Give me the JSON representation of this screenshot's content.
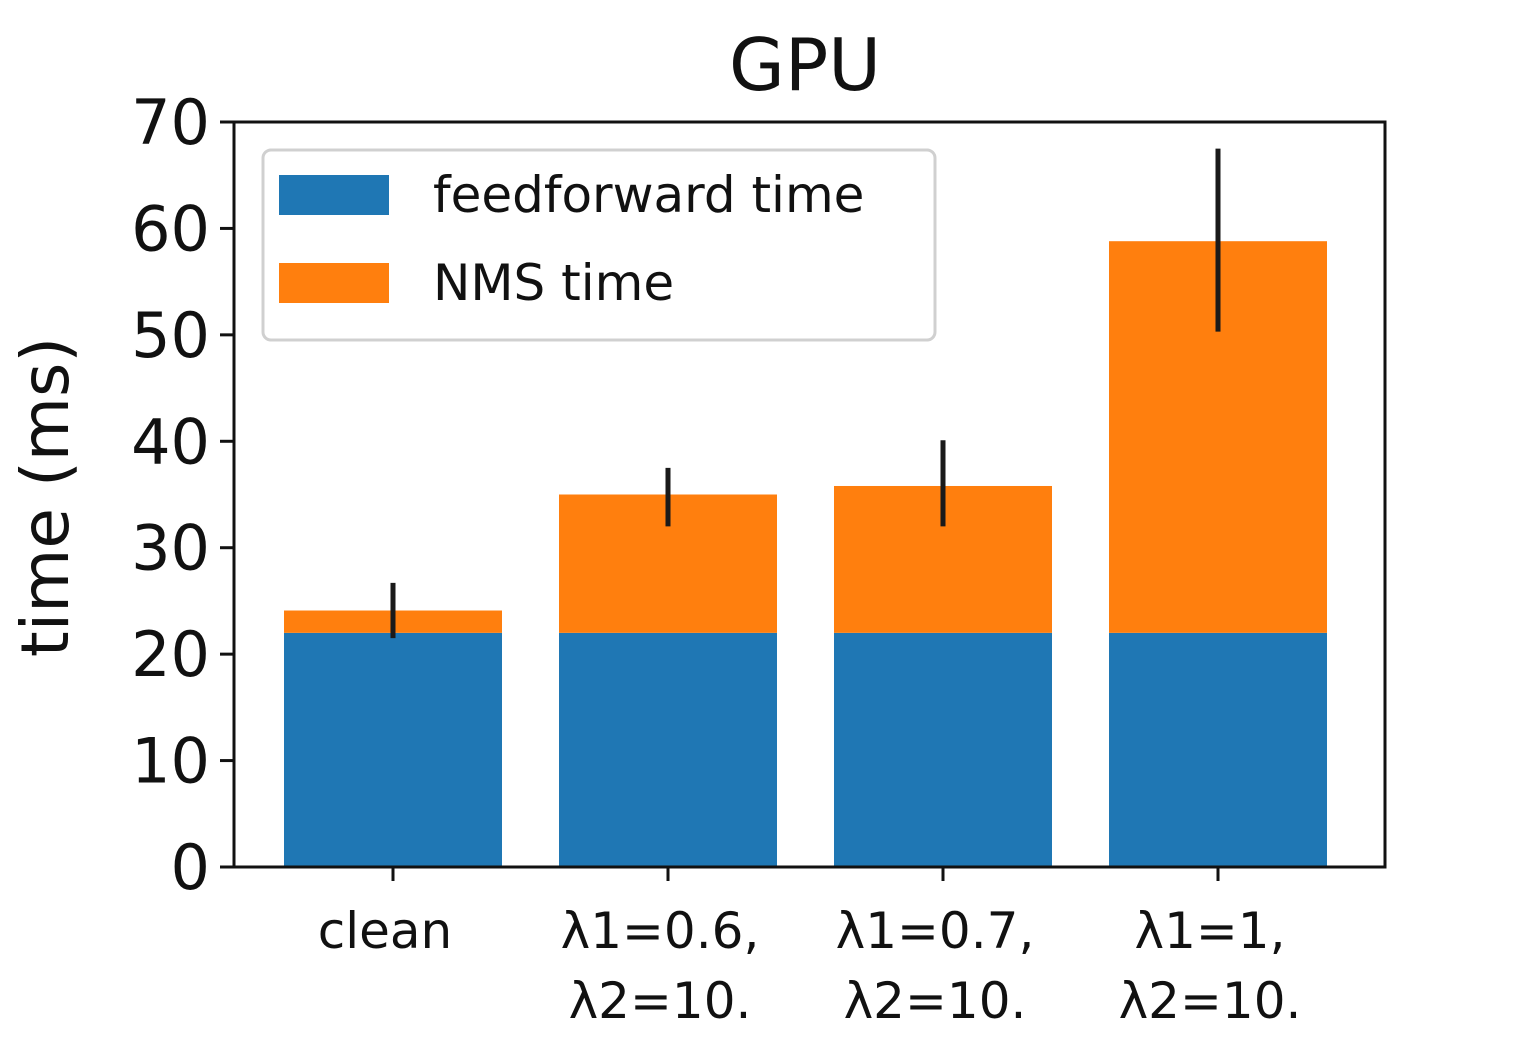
{
  "chart_data": {
    "type": "bar",
    "stacked": true,
    "title": "GPU",
    "xlabel": "",
    "ylabel": "time (ms)",
    "ylim": [
      0,
      70
    ],
    "yticks": [
      0,
      10,
      20,
      30,
      40,
      50,
      60,
      70
    ],
    "categories": [
      [
        "clean"
      ],
      [
        "λ1=0.6,",
        "λ2=10."
      ],
      [
        "λ1=0.7,",
        "λ2=10."
      ],
      [
        "λ1=1,",
        "λ2=10."
      ]
    ],
    "series": [
      {
        "name": "feedforward time",
        "color": "#1f77b4",
        "values": [
          22,
          22,
          22,
          22
        ]
      },
      {
        "name": "NMS time",
        "color": "#ff7f0e",
        "values": [
          2.1,
          13,
          13.8,
          36.8
        ]
      }
    ],
    "error_bars": {
      "color": "#1a1a1a",
      "center": [
        24.1,
        35,
        35.8,
        58.8
      ],
      "low": [
        21.5,
        32,
        32,
        50.3
      ],
      "high": [
        26.7,
        37.5,
        40.1,
        67.5
      ]
    },
    "legend": {
      "placement": "upper-left"
    },
    "grid": false
  }
}
